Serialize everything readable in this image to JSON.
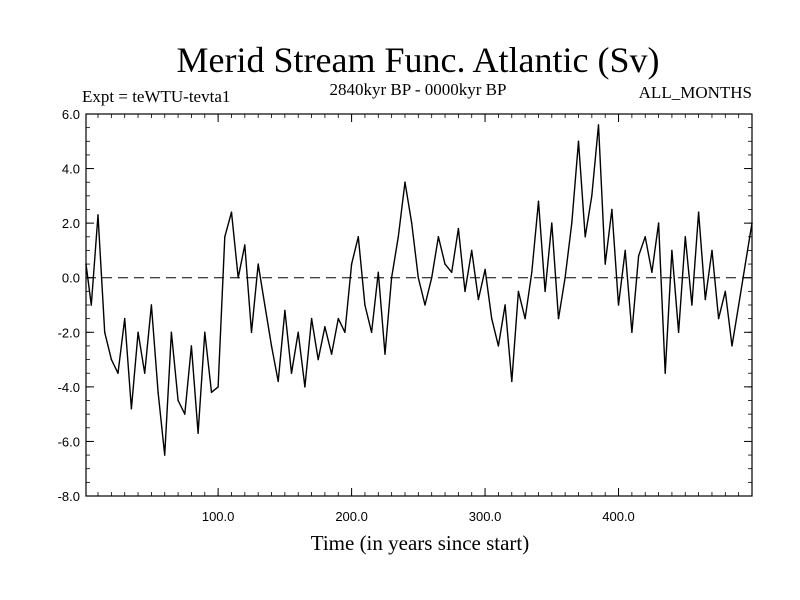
{
  "chart_data": {
    "type": "line",
    "title": "Merid Stream Func. Atlantic (Sv)",
    "subtitle_left": "Expt = teWTU-tevta1",
    "subtitle_center": "2840kyr BP - 0000kyr BP",
    "subtitle_right": "ALL_MONTHS",
    "xlabel": "Time (in years since start)",
    "ylabel": "",
    "xlim": [
      1,
      500
    ],
    "ylim": [
      -8.0,
      6.0
    ],
    "xticks": [
      100.0,
      200.0,
      300.0,
      400.0
    ],
    "xtick_labels": [
      "100.0",
      "200.0",
      "300.0",
      "400.0"
    ],
    "yticks": [
      6.0,
      4.0,
      2.0,
      0.0,
      -2.0,
      -4.0,
      -6.0,
      -8.0
    ],
    "ytick_labels": [
      "6.0",
      "4.0",
      "2.0",
      "0.0",
      "-2.0",
      "-4.0",
      "-6.0",
      "-8.0"
    ],
    "reference_line": 0.0,
    "series": [
      {
        "name": "Merid Stream Func. Atlantic",
        "x": [
          1,
          5,
          10,
          15,
          20,
          25,
          30,
          35,
          40,
          45,
          50,
          55,
          60,
          65,
          70,
          75,
          80,
          85,
          90,
          95,
          100,
          105,
          110,
          115,
          120,
          125,
          130,
          135,
          140,
          145,
          150,
          155,
          160,
          165,
          170,
          175,
          180,
          185,
          190,
          195,
          200,
          205,
          210,
          215,
          220,
          225,
          230,
          235,
          240,
          245,
          250,
          255,
          260,
          265,
          270,
          275,
          280,
          285,
          290,
          295,
          300,
          305,
          310,
          315,
          320,
          325,
          330,
          335,
          340,
          345,
          350,
          355,
          360,
          365,
          370,
          375,
          380,
          385,
          390,
          395,
          400,
          405,
          410,
          415,
          420,
          425,
          430,
          435,
          440,
          445,
          450,
          455,
          460,
          465,
          470,
          475,
          480,
          485,
          490,
          495,
          500
        ],
        "values": [
          0.5,
          -1.0,
          2.3,
          -2.0,
          -3.0,
          -3.5,
          -1.5,
          -4.8,
          -2.0,
          -3.5,
          -1.0,
          -4.2,
          -6.5,
          -2.0,
          -4.5,
          -5.0,
          -2.5,
          -5.7,
          -2.0,
          -4.2,
          -4.0,
          1.5,
          2.4,
          0.0,
          1.2,
          -2.0,
          0.5,
          -1.0,
          -2.5,
          -3.8,
          -1.2,
          -3.5,
          -2.0,
          -4.0,
          -1.5,
          -3.0,
          -1.8,
          -2.8,
          -1.5,
          -2.0,
          0.5,
          1.5,
          -1.0,
          -2.0,
          0.2,
          -2.8,
          0.0,
          1.5,
          3.5,
          2.0,
          0.0,
          -1.0,
          0.0,
          1.5,
          0.5,
          0.2,
          1.8,
          -0.5,
          1.0,
          -0.8,
          0.3,
          -1.5,
          -2.5,
          -1.0,
          -3.8,
          -0.5,
          -1.5,
          0.2,
          2.8,
          -0.5,
          2.0,
          -1.5,
          0.0,
          2.0,
          5.0,
          1.5,
          3.0,
          5.6,
          0.5,
          2.5,
          -1.0,
          1.0,
          -2.0,
          0.8,
          1.5,
          0.2,
          2.0,
          -3.5,
          1.0,
          -2.0,
          1.5,
          -1.0,
          2.4,
          -0.8,
          1.0,
          -1.5,
          -0.5,
          -2.5,
          -1.0,
          0.5,
          2.0
        ]
      }
    ]
  }
}
